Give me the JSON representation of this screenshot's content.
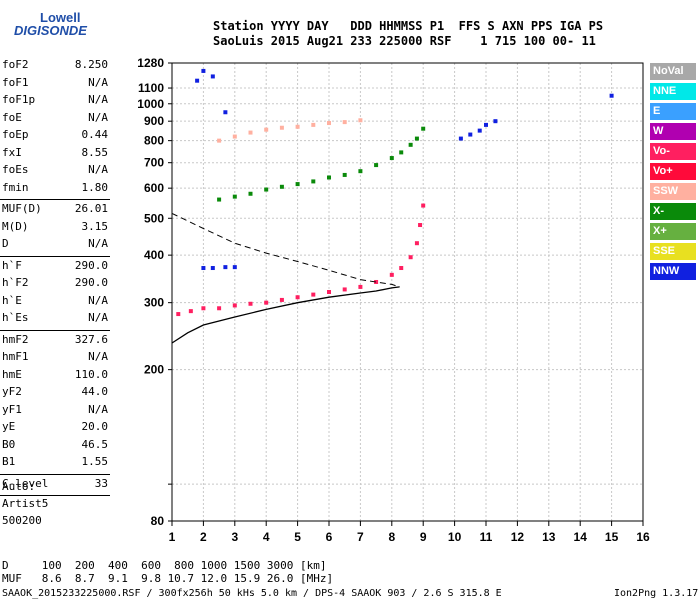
{
  "logo": {
    "line1": "Lowell",
    "line2": "DIGISONDE"
  },
  "header": {
    "line1": "Station YYYY DAY   DDD HHMMSS P1  FFS S AXN PPS IGA PS",
    "line2": "SaoLuis 2015 Aug21 233 225000 RSF    1 715 100 00- 11"
  },
  "params": [
    {
      "k": "foF2",
      "v": "8.250"
    },
    {
      "k": "foF1",
      "v": "N/A"
    },
    {
      "k": "foF1p",
      "v": "N/A"
    },
    {
      "k": "foE",
      "v": "N/A"
    },
    {
      "k": "foEp",
      "v": "0.44"
    },
    {
      "k": "fxI",
      "v": "8.55"
    },
    {
      "k": "foEs",
      "v": "N/A"
    },
    {
      "k": "fmin",
      "v": "1.80"
    },
    {
      "k": "MUF(D)",
      "v": "26.01"
    },
    {
      "k": "M(D)",
      "v": "3.15"
    },
    {
      "k": "D",
      "v": "N/A"
    },
    {
      "k": "h`F",
      "v": "290.0"
    },
    {
      "k": "h`F2",
      "v": "290.0"
    },
    {
      "k": "h`E",
      "v": "N/A"
    },
    {
      "k": "h`Es",
      "v": "N/A"
    },
    {
      "k": "hmF2",
      "v": "327.6"
    },
    {
      "k": "hmF1",
      "v": "N/A"
    },
    {
      "k": "hmE",
      "v": "110.0"
    },
    {
      "k": "yF2",
      "v": "44.0"
    },
    {
      "k": "yF1",
      "v": "N/A"
    },
    {
      "k": "yE",
      "v": "20.0"
    },
    {
      "k": "B0",
      "v": "46.5"
    },
    {
      "k": "B1",
      "v": "1.55"
    },
    {
      "k": "C-level",
      "v": "33"
    }
  ],
  "notes": [
    "Auto:",
    "Artist5",
    "500200"
  ],
  "legend": [
    {
      "label": "NoVal",
      "color": "#a8a8a8"
    },
    {
      "label": "NNE",
      "color": "#00e8e8"
    },
    {
      "label": "E",
      "color": "#3aa0ff"
    },
    {
      "label": "W",
      "color": "#b000b0"
    },
    {
      "label": "Vo-",
      "color": "#ff1f60"
    },
    {
      "label": "Vo+",
      "color": "#ff0a3a"
    },
    {
      "label": "SSW",
      "color": "#ffb0a0"
    },
    {
      "label": "X-",
      "color": "#0a8a0a"
    },
    {
      "label": "X+",
      "color": "#66b040"
    },
    {
      "label": "SSE",
      "color": "#e8e020"
    },
    {
      "label": "NNW",
      "color": "#1020e0"
    }
  ],
  "footer": {
    "line1": "D     100  200  400  600  800 1000 1500 3000 [km]",
    "line2": "MUF   8.6  8.7  9.1  9.8 10.7 12.0 15.9 26.0 [MHz]",
    "line3": "SAAOK_2015233225000.RSF / 300fx256h 50 kHs 5.0 km / DPS-4 SAAOK 903 / 2.6 S 315.8 E",
    "version": "Ion2Png 1.3.17"
  },
  "chart_data": {
    "type": "scatter",
    "title": "",
    "xlabel": "",
    "ylabel": "",
    "xlim": [
      1,
      16
    ],
    "ylim": [
      80,
      1280
    ],
    "y_scale": "log",
    "grid": true,
    "x_ticks": [
      1,
      2,
      3,
      4,
      5,
      6,
      7,
      8,
      9,
      10,
      11,
      12,
      13,
      14,
      15,
      16
    ],
    "y_ticks": [
      80,
      100,
      200,
      300,
      400,
      500,
      600,
      700,
      800,
      900,
      1000,
      1100,
      1280
    ],
    "y_tick_labels": [
      "80",
      "",
      "200",
      "300",
      "400",
      "500",
      "600",
      "700",
      "800",
      "900",
      "1000",
      "1100",
      "1280"
    ],
    "series": [
      {
        "name": "",
        "color": "#ff1f60",
        "points": [
          [
            1.2,
            280
          ],
          [
            1.6,
            285
          ],
          [
            2.0,
            290
          ],
          [
            2.5,
            290
          ],
          [
            3.0,
            295
          ],
          [
            3.5,
            298
          ],
          [
            4.0,
            300
          ],
          [
            4.5,
            305
          ],
          [
            5.0,
            310
          ],
          [
            5.5,
            315
          ],
          [
            6.0,
            320
          ],
          [
            6.5,
            325
          ],
          [
            7.0,
            330
          ],
          [
            7.5,
            340
          ],
          [
            8.0,
            355
          ],
          [
            8.3,
            370
          ],
          [
            8.6,
            395
          ],
          [
            8.8,
            430
          ],
          [
            8.9,
            480
          ],
          [
            9.0,
            540
          ]
        ]
      },
      {
        "name": "",
        "color": "#0a8a0a",
        "points": [
          [
            2.5,
            560
          ],
          [
            3.0,
            570
          ],
          [
            3.5,
            580
          ],
          [
            4.0,
            595
          ],
          [
            4.5,
            605
          ],
          [
            5.0,
            615
          ],
          [
            5.5,
            625
          ],
          [
            6.0,
            640
          ],
          [
            6.5,
            650
          ],
          [
            7.0,
            665
          ],
          [
            7.5,
            690
          ],
          [
            8.0,
            720
          ],
          [
            8.3,
            745
          ],
          [
            8.6,
            780
          ],
          [
            8.8,
            810
          ],
          [
            9.0,
            860
          ]
        ]
      },
      {
        "name": "",
        "color": "#ffb0a0",
        "points": [
          [
            2.5,
            800
          ],
          [
            3.0,
            820
          ],
          [
            3.5,
            840
          ],
          [
            4.0,
            855
          ],
          [
            4.5,
            865
          ],
          [
            5.0,
            870
          ],
          [
            5.5,
            880
          ],
          [
            6.0,
            890
          ],
          [
            6.5,
            895
          ],
          [
            7.0,
            905
          ]
        ]
      },
      {
        "name": "",
        "color": "#1020e0",
        "points": [
          [
            2.0,
            370
          ],
          [
            2.3,
            370
          ],
          [
            2.7,
            372
          ],
          [
            3.0,
            372
          ],
          [
            1.8,
            1150
          ],
          [
            2.0,
            1220
          ],
          [
            2.3,
            1180
          ],
          [
            2.7,
            950
          ],
          [
            10.2,
            810
          ],
          [
            10.5,
            830
          ],
          [
            10.8,
            850
          ],
          [
            11.0,
            880
          ],
          [
            11.3,
            900
          ],
          [
            15.0,
            1050
          ]
        ]
      }
    ],
    "profile_curve": [
      [
        1.0,
        235
      ],
      [
        1.5,
        250
      ],
      [
        2.0,
        262
      ],
      [
        3.0,
        275
      ],
      [
        4.0,
        288
      ],
      [
        5.0,
        300
      ],
      [
        6.0,
        310
      ],
      [
        7.0,
        318
      ],
      [
        7.5,
        322
      ],
      [
        8.0,
        328
      ],
      [
        8.25,
        330
      ]
    ],
    "dashed_curve": [
      [
        1.0,
        515
      ],
      [
        2.0,
        470
      ],
      [
        3.0,
        430
      ],
      [
        4.0,
        405
      ],
      [
        5.0,
        385
      ],
      [
        6.0,
        365
      ],
      [
        7.0,
        345
      ],
      [
        8.0,
        335
      ],
      [
        8.25,
        330
      ]
    ]
  }
}
